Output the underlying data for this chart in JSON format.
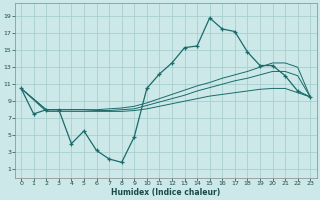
{
  "xlabel": "Humidex (Indice chaleur)",
  "bg_color": "#cce8e8",
  "grid_color": "#aacece",
  "line_color": "#1a6b6b",
  "x_ticks": [
    0,
    1,
    2,
    3,
    4,
    5,
    6,
    7,
    8,
    9,
    10,
    11,
    12,
    13,
    14,
    15,
    16,
    17,
    18,
    19,
    20,
    21,
    22,
    23
  ],
  "y_ticks": [
    1,
    3,
    5,
    7,
    9,
    11,
    13,
    15,
    17,
    19
  ],
  "xlim": [
    -0.5,
    23.5
  ],
  "ylim": [
    0,
    20.5
  ],
  "line1_x": [
    0,
    1,
    2,
    3,
    4,
    5,
    6,
    7,
    8,
    9,
    10,
    11,
    12,
    13,
    14,
    15,
    16,
    17,
    18,
    19,
    20,
    21,
    22,
    23
  ],
  "line1_y": [
    10.5,
    7.5,
    8.0,
    8.0,
    4.0,
    5.5,
    3.2,
    2.2,
    1.8,
    4.8,
    10.5,
    12.2,
    13.5,
    15.3,
    15.5,
    18.8,
    17.5,
    17.2,
    14.8,
    13.2,
    13.2,
    12.0,
    10.2,
    9.5
  ],
  "line2_x": [
    0,
    2,
    3,
    4,
    5,
    6,
    7,
    8,
    9,
    10,
    11,
    12,
    13,
    14,
    15,
    16,
    17,
    18,
    19,
    20,
    21,
    22,
    23
  ],
  "line2_y": [
    10.5,
    8.0,
    8.0,
    8.0,
    8.0,
    8.0,
    8.1,
    8.2,
    8.4,
    8.8,
    9.3,
    9.8,
    10.3,
    10.8,
    11.2,
    11.7,
    12.1,
    12.5,
    13.0,
    13.5,
    13.5,
    13.0,
    9.5
  ],
  "line3_x": [
    0,
    2,
    3,
    4,
    5,
    6,
    7,
    8,
    9,
    10,
    11,
    12,
    13,
    14,
    15,
    16,
    17,
    18,
    19,
    20,
    21,
    22,
    23
  ],
  "line3_y": [
    10.5,
    8.0,
    8.0,
    8.0,
    8.0,
    7.9,
    7.9,
    8.0,
    8.1,
    8.5,
    8.9,
    9.3,
    9.7,
    10.2,
    10.6,
    11.0,
    11.4,
    11.7,
    12.1,
    12.5,
    12.5,
    12.0,
    9.5
  ],
  "line4_x": [
    0,
    2,
    3,
    4,
    5,
    6,
    7,
    8,
    9,
    10,
    11,
    12,
    13,
    14,
    15,
    16,
    17,
    18,
    19,
    20,
    21,
    22,
    23
  ],
  "line4_y": [
    10.5,
    7.8,
    7.8,
    7.8,
    7.8,
    7.8,
    7.8,
    7.8,
    7.9,
    8.1,
    8.4,
    8.7,
    9.0,
    9.3,
    9.6,
    9.8,
    10.0,
    10.2,
    10.4,
    10.5,
    10.5,
    10.0,
    9.5
  ]
}
